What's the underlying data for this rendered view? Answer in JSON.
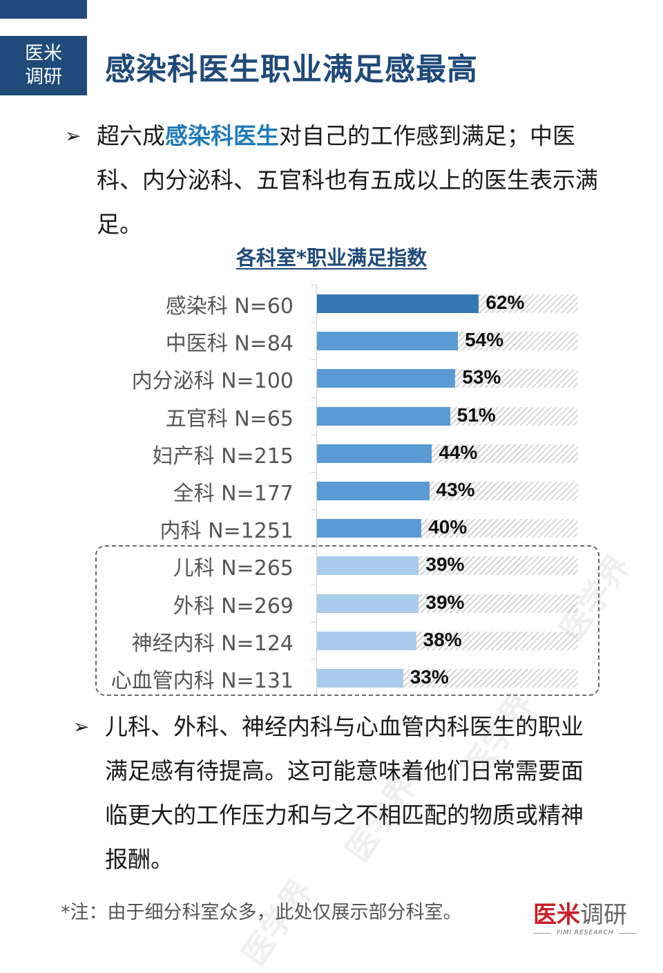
{
  "header": {
    "badge_line1": "医米",
    "badge_line2": "调研",
    "title": "感染科医生职业满足感最高"
  },
  "bullets": [
    {
      "arrow": "➢",
      "prefix": "超六成",
      "highlight": "感染科医生",
      "suffix": "对自己的工作感到满足；中医科、内分泌科、五官科也有五成以上的医生表示满足。"
    },
    {
      "arrow": "➢",
      "text": "儿科、外科、神经内科与心血管内科医生的职业满足感有待提高。这可能意味着他们日常需要面临更大的工作压力和与之不相匹配的物质或精神报酬。"
    }
  ],
  "chart_data": {
    "type": "bar",
    "orientation": "horizontal",
    "title": "各科室*职业满足指数",
    "xlabel": "",
    "ylabel": "",
    "xlim": [
      0,
      100
    ],
    "grid": false,
    "categories": [
      "感染科 N=60",
      "中医科 N=84",
      "内分泌科 N=100",
      "五官科 N=65",
      "妇产科 N=215",
      "全科 N=177",
      "内科 N=1251",
      "儿科 N=265",
      "外科 N=269",
      "神经内科 N=124",
      "心血管内科 N=131"
    ],
    "values": [
      62,
      54,
      53,
      51,
      44,
      43,
      40,
      39,
      39,
      38,
      33
    ],
    "value_labels": [
      "62%",
      "54%",
      "53%",
      "51%",
      "44%",
      "43%",
      "40%",
      "39%",
      "39%",
      "38%",
      "33%"
    ],
    "bar_colors": [
      "#3576b5",
      "#5b9bd5",
      "#5b9bd5",
      "#5b9bd5",
      "#5b9bd5",
      "#5b9bd5",
      "#5b9bd5",
      "#a9cbec",
      "#a9cbec",
      "#a9cbec",
      "#a9cbec"
    ],
    "background_track": "hatched to 100%",
    "annotation": "dashed box highlights 儿科, 外科, 神经内科, 心血管内科"
  },
  "footer": {
    "note": "*注：由于细分科室众多，此处仅展示部分科室。",
    "logo_red": "医米",
    "logo_grey": "调研",
    "logo_en": "YIMI RESEARCH"
  },
  "watermark": "医学界"
}
